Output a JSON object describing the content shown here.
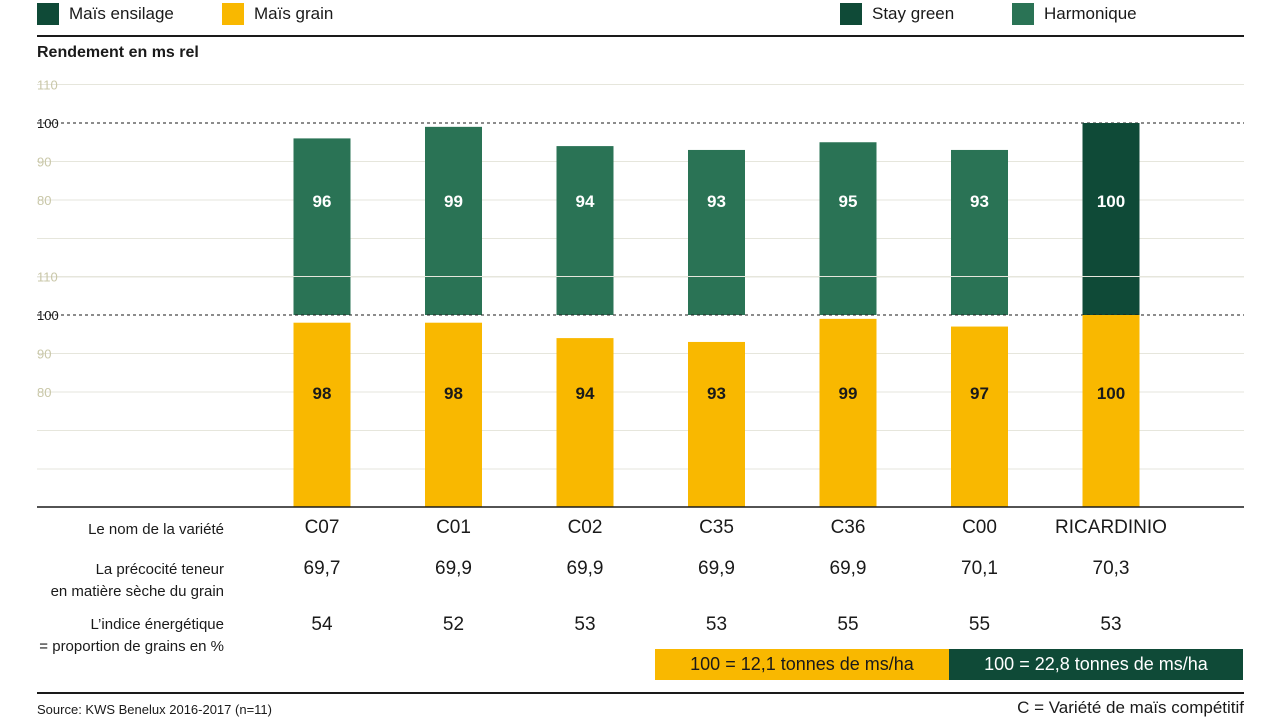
{
  "legend": [
    {
      "label": "Maïs ensilage",
      "color": "#0f4a37"
    },
    {
      "label": "Maïs grain",
      "color": "#f9b800"
    },
    {
      "label": "Stay green",
      "color": "#0f4a37"
    },
    {
      "label": "Harmonique",
      "color": "#2a7355"
    }
  ],
  "chart_title": "Rendement en ms rel",
  "chart_data": {
    "type": "bar",
    "ylabel": "Rendement en ms rel",
    "categories": [
      "C07",
      "C01",
      "C02",
      "C35",
      "C36",
      "C00",
      "RICARDINIO"
    ],
    "panels": [
      {
        "name": "Maïs ensilage",
        "ylim": [
          60,
          110
        ],
        "yticks": [
          80,
          90,
          100,
          110
        ],
        "reference_line": 100,
        "values": [
          96,
          99,
          94,
          93,
          95,
          93,
          100
        ],
        "colors": [
          "#2a7355",
          "#2a7355",
          "#2a7355",
          "#2a7355",
          "#2a7355",
          "#2a7355",
          "#0f4a37"
        ]
      },
      {
        "name": "Maïs grain",
        "ylim": [
          50,
          110
        ],
        "yticks": [
          80,
          90,
          100,
          110
        ],
        "reference_line": 100,
        "values": [
          98,
          98,
          94,
          93,
          99,
          97,
          100
        ],
        "colors": [
          "#f9b800",
          "#f9b800",
          "#f9b800",
          "#f9b800",
          "#f9b800",
          "#f9b800",
          "#f9b800"
        ]
      }
    ]
  },
  "table": {
    "rows": [
      {
        "label": "Le nom de la variété",
        "values": [
          "C07",
          "C01",
          "C02",
          "C35",
          "C36",
          "C00",
          "RICARDINIO"
        ]
      },
      {
        "label": "La précocité teneur\nen matière sèche du grain",
        "values": [
          "69,7",
          "69,9",
          "69,9",
          "69,9",
          "69,9",
          "70,1",
          "70,3"
        ]
      },
      {
        "label": "L’indice énergétique\n= proportion de grains en %",
        "values": [
          "54",
          "52",
          "53",
          "53",
          "55",
          "55",
          "53"
        ]
      }
    ]
  },
  "notes": {
    "grain": "100 = 12,1 tonnes de ms/ha",
    "ensilage": "100 = 22,8 tonnes de ms/ha"
  },
  "footer": {
    "source": "Source: KWS Benelux 2016-2017 (n=11)",
    "legend_c": "C = Variété de maïs compétitif"
  }
}
